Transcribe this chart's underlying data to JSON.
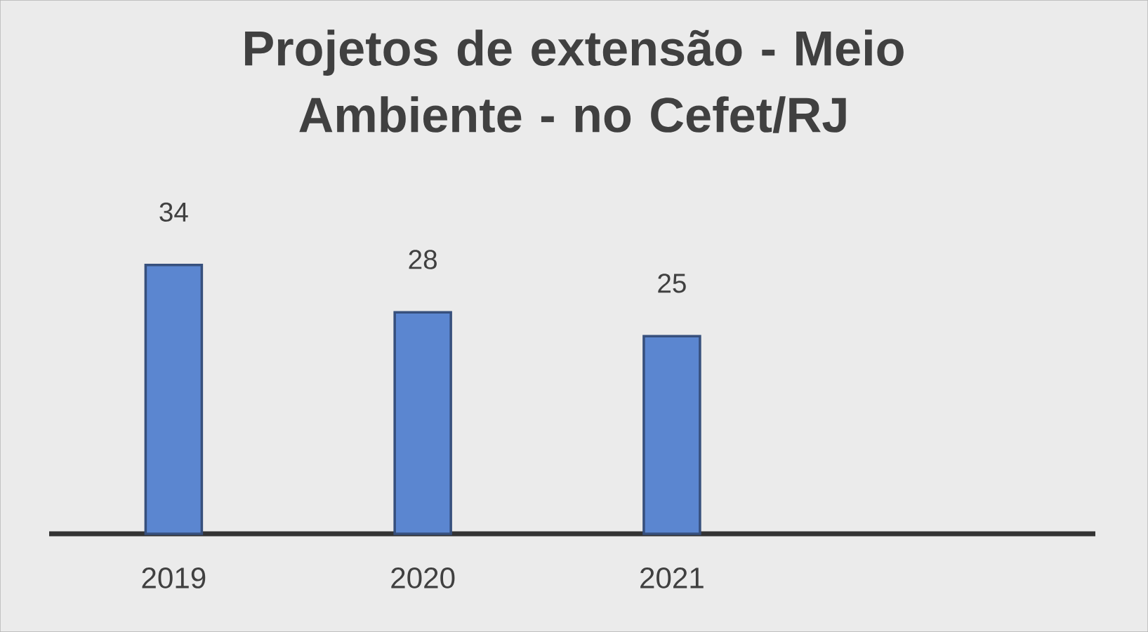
{
  "chart_data": {
    "type": "bar",
    "title": "Projetos de extensão - Meio Ambiente - no Cefet/RJ",
    "categories": [
      "2019",
      "2020",
      "2021"
    ],
    "values": [
      34,
      28,
      25
    ],
    "color": "#5b86d0",
    "data_labels": true
  }
}
